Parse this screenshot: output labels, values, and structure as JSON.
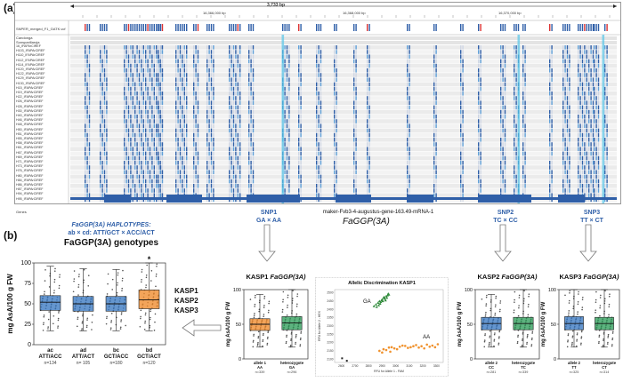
{
  "panel_a": {
    "label": "(a)",
    "ruler": {
      "length": "3,733 bp",
      "ticks": [
        "16,366,000 bp",
        "16,368,000 bp",
        "16,370,000 bp"
      ]
    },
    "vcf_track": "SNPER_merged_F1_GATK.vcf",
    "parents": [
      "Candonga",
      "Sonsparillaroja"
    ],
    "samples": [
      "16_IFAPArCIREF",
      "H103_IFAPArCIREF",
      "H110_IFAPArCIREF",
      "H112_IFAPArCIREF",
      "H114_IFAPArCIREF",
      "H120_IFAPArCIREF",
      "H122_IFAPArCIREF",
      "H129_IFAPArCIREF",
      "H130_IFAPArCIREF",
      "H15_IFAPArCIREF",
      "H19_IFAPArCIREF",
      "H22_IFAPArCIREF",
      "H26_IFAPArCIREF",
      "H28_IFAPArCIREF",
      "H30_IFAPArCIREF",
      "H40_IFAPArCIREF",
      "H46_IFAPArCIREF",
      "H48_IFAPArCIREF",
      "H50_IFAPArCIREF",
      "H51_IFAPArCIREF",
      "H55_IFAPArCIREF",
      "H58_IFAPArCIREF",
      "H61_IFAPArCIREF",
      "H67_IFAPArCIREF",
      "H69_IFAPArCIREF",
      "H71_IFAPArCIREF",
      "H73_IFAPArCIREF",
      "H76_IFAPArCIREF",
      "H80_IFAPArCIREF",
      "H84_IFAPArCIREF",
      "H86_IFAPArCIREF",
      "H87_IFAPArCIREF",
      "H94_IFAPArCIREF",
      "H95_IFAPArCIREF"
    ],
    "genes_track": "Genes",
    "gene_model": "maker-Fvb3-4-augustus-gene-163.49-mRNA-1",
    "gene_name": "FaGGP(3A)",
    "snp1": {
      "name": "SNP1",
      "alleles": "GA × AA"
    },
    "snp2": {
      "name": "SNP2",
      "alleles": "TC × CC"
    },
    "snp3": {
      "name": "SNP3",
      "alleles": "TT × CT"
    }
  },
  "panel_b": {
    "label": "(b)",
    "haplotypes_line1": "FaGGP(3A) HAPLOTYPES:",
    "haplotypes_line2": "ab × cd: ATT/GCT × ACC/ACT",
    "genotypes_title": "FaGGP(3A) genotypes",
    "kasp_list": [
      "KASP1",
      "KASP2",
      "KASP3"
    ],
    "colors": {
      "blue": "#3a78c2",
      "orange": "#f08a2c",
      "green": "#2f9e5b",
      "snp_text": "#2f5fa8"
    }
  },
  "chart_data": [
    {
      "type": "box",
      "title": "FaGGP(3A) genotypes",
      "ylabel": "mg AsA/100 g FW",
      "ylim": [
        0,
        100
      ],
      "yticks": [
        0,
        25,
        50,
        75,
        100
      ],
      "categories": [
        "ac",
        "ad",
        "bc",
        "bd"
      ],
      "category_sub": [
        "ATT/ACC",
        "ATT/ACT",
        "GCT/ACC",
        "GCT/ACT"
      ],
      "n_labels": [
        "n=134",
        "n= 105",
        "n=180",
        "n=120"
      ],
      "q1": [
        42,
        41,
        41,
        44
      ],
      "median": [
        52,
        50,
        50,
        55
      ],
      "q3": [
        60,
        59,
        59,
        67
      ],
      "whisker_low": [
        17,
        17,
        17,
        17
      ],
      "whisker_high": [
        96,
        93,
        92,
        100
      ],
      "colors": [
        "#3a78c2",
        "#3a78c2",
        "#3a78c2",
        "#f08a2c"
      ],
      "annotations": [
        "*"
      ]
    },
    {
      "type": "box",
      "title": "KASP1 FaGGP(3A)",
      "ylabel": "mg AsA/100 g FW",
      "ylim": [
        0,
        100
      ],
      "yticks": [
        0,
        50,
        100
      ],
      "categories": [
        "allele 1",
        "heterozygote"
      ],
      "category_sub": [
        "AA",
        "GA"
      ],
      "n_labels": [
        "n=339",
        "n=296"
      ],
      "q1": [
        41,
        42
      ],
      "median": [
        50,
        52
      ],
      "q3": [
        58,
        61
      ],
      "whisker_low": [
        17,
        17
      ],
      "whisker_high": [
        93,
        100
      ],
      "colors": [
        "#f08a2c",
        "#2f9e5b"
      ]
    },
    {
      "type": "scatter",
      "title": "Allelic Discrimination KASP1",
      "xlabel": "RFU for Allele 1 - FAM",
      "ylabel": "RFU for Allele 2 - HEX",
      "xticks": [
        2600,
        2700,
        2800,
        2900,
        3000,
        3100,
        3200,
        3300
      ],
      "yticks": [
        2100,
        2150,
        2200,
        2250,
        2300,
        2350,
        2400,
        2450,
        2500
      ],
      "xlim": [
        2550,
        3350
      ],
      "ylim": [
        2080,
        2520
      ],
      "series": [
        {
          "name": "GA",
          "color": "#2f8a3a",
          "points": [
            [
              2840,
              2420
            ],
            [
              2855,
              2430
            ],
            [
              2870,
              2440
            ],
            [
              2880,
              2450
            ],
            [
              2890,
              2445
            ],
            [
              2900,
              2460
            ],
            [
              2910,
              2470
            ],
            [
              2920,
              2465
            ],
            [
              2930,
              2480
            ],
            [
              2940,
              2485
            ],
            [
              2950,
              2490
            ],
            [
              2875,
              2425
            ],
            [
              2895,
              2455
            ],
            [
              2915,
              2475
            ],
            [
              2935,
              2470
            ],
            [
              2860,
              2415
            ],
            [
              2905,
              2450
            ],
            [
              2945,
              2495
            ],
            [
              2925,
              2455
            ],
            [
              2885,
              2435
            ]
          ]
        },
        {
          "name": "AA",
          "color": "#f0922e",
          "points": [
            [
              2880,
              2150
            ],
            [
              2910,
              2160
            ],
            [
              2950,
              2170
            ],
            [
              2990,
              2165
            ],
            [
              3030,
              2175
            ],
            [
              3070,
              2180
            ],
            [
              3110,
              2172
            ],
            [
              3150,
              2185
            ],
            [
              3190,
              2178
            ],
            [
              3230,
              2188
            ],
            [
              3270,
              2182
            ],
            [
              3310,
              2190
            ],
            [
              2930,
              2155
            ],
            [
              3010,
              2160
            ],
            [
              3090,
              2168
            ],
            [
              3170,
              2170
            ],
            [
              3250,
              2175
            ],
            [
              2970,
              2172
            ],
            [
              3050,
              2182
            ],
            [
              3130,
              2178
            ],
            [
              3210,
              2165
            ],
            [
              3290,
              2172
            ],
            [
              2900,
              2140
            ],
            [
              2960,
              2145
            ]
          ]
        },
        {
          "name": "",
          "color": "#222222",
          "points": [
            [
              2605,
              2105
            ],
            [
              2640,
              2090
            ]
          ]
        }
      ]
    },
    {
      "type": "box",
      "title": "KASP2 FaGGP(3A)",
      "ylabel": "mg AsA/100 g FW",
      "ylim": [
        0,
        100
      ],
      "yticks": [
        0,
        50,
        100
      ],
      "categories": [
        "allele 2",
        "heterozygote"
      ],
      "category_sub": [
        "CC",
        "TC"
      ],
      "n_labels": [
        "n=281",
        "n=339"
      ],
      "q1": [
        42,
        42
      ],
      "median": [
        51,
        51
      ],
      "q3": [
        60,
        60
      ],
      "whisker_low": [
        17,
        17
      ],
      "whisker_high": [
        93,
        100
      ],
      "colors": [
        "#3a78c2",
        "#2f9e5b"
      ]
    },
    {
      "type": "box",
      "title": "KASP3 FaGGP(3A)",
      "ylabel": "mg AsA/100 g FW",
      "ylim": [
        0,
        100
      ],
      "yticks": [
        0,
        50,
        100
      ],
      "categories": [
        "allele 2",
        "heterozygote"
      ],
      "category_sub": [
        "TT",
        "CT"
      ],
      "n_labels": [
        "n=325",
        "n=314"
      ],
      "q1": [
        42,
        42
      ],
      "median": [
        51,
        51
      ],
      "q3": [
        61,
        60
      ],
      "whisker_low": [
        17,
        17
      ],
      "whisker_high": [
        100,
        100
      ],
      "colors": [
        "#3a78c2",
        "#2f9e5b"
      ]
    }
  ]
}
